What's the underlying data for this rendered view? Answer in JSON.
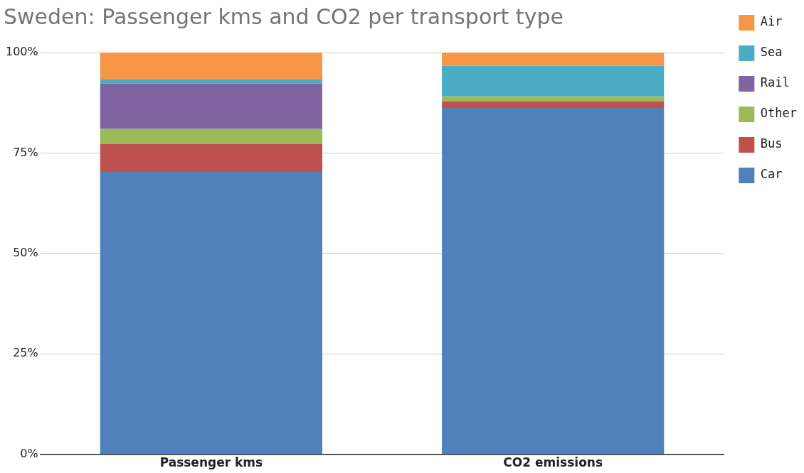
{
  "chart_data": {
    "type": "bar",
    "title": "Sweden: Passenger kms and CO2 per transport type",
    "categories": [
      "Passenger kms",
      "CO2 emissions"
    ],
    "stacked": true,
    "series": [
      {
        "name": "Car",
        "color": "#4f81bd",
        "values": [
          70.3,
          86.2
        ]
      },
      {
        "name": "Bus",
        "color": "#c0504d",
        "values": [
          6.9,
          1.6
        ]
      },
      {
        "name": "Other",
        "color": "#9bbb59",
        "values": [
          3.8,
          1.3
        ]
      },
      {
        "name": "Rail",
        "color": "#8064a2",
        "values": [
          11.3,
          0.0
        ]
      },
      {
        "name": "Sea",
        "color": "#4bacc6",
        "values": [
          1.1,
          7.6
        ]
      },
      {
        "name": "Air",
        "color": "#f79646",
        "values": [
          6.6,
          3.3
        ]
      }
    ],
    "ylim": [
      0,
      100
    ],
    "yticks": [
      {
        "value": 0,
        "label": "0%"
      },
      {
        "value": 25,
        "label": "25%"
      },
      {
        "value": 50,
        "label": "50%"
      },
      {
        "value": 75,
        "label": "75%"
      },
      {
        "value": 100,
        "label": "100%"
      }
    ],
    "grid": "y",
    "legend": "right"
  }
}
